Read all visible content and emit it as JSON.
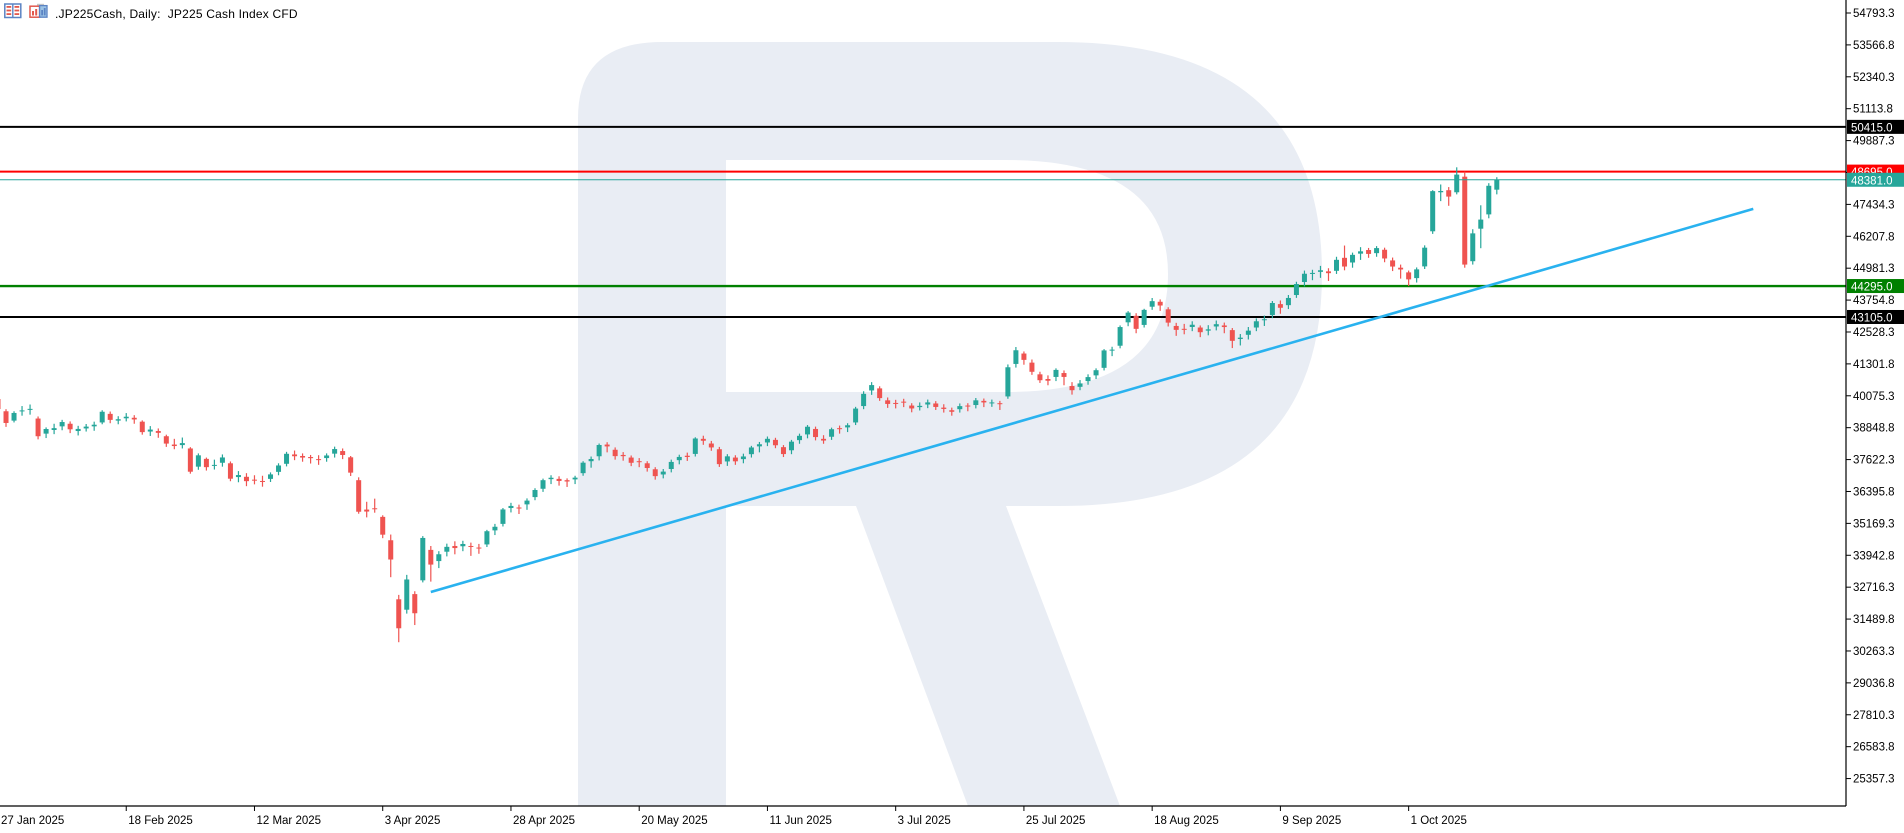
{
  "header": {
    "title": ".JP225Cash, Daily:  JP225 Cash Index CFD",
    "icons": [
      "market-watch-icon",
      "chart-windows-icon"
    ]
  },
  "chart_data": {
    "type": "candlestick",
    "symbol": ".JP225Cash",
    "timeframe": "Daily",
    "description": "JP225 Cash Index CFD",
    "colors": {
      "up": "#26a69a",
      "down": "#ef5350",
      "trendline": "#29b2ef",
      "current_price": "#26a69a",
      "axis_text": "#000000",
      "watermark": "#e9edf4"
    },
    "y_axis": {
      "side": "right",
      "ticks": [
        54793.3,
        53566.8,
        52340.3,
        51113.8,
        49887.3,
        48660.8,
        47434.3,
        46207.8,
        44981.3,
        43754.8,
        42528.3,
        41301.8,
        40075.3,
        38848.8,
        37622.3,
        36395.8,
        35169.3,
        33942.8,
        32716.3,
        31489.8,
        30263.3,
        29036.8,
        27810.3,
        26583.8,
        25357.3
      ]
    },
    "x_axis": {
      "labels": [
        {
          "label": "27 Jan 2025",
          "bar": 0
        },
        {
          "label": "18 Feb 2025",
          "bar": 16
        },
        {
          "label": "12 Mar 2025",
          "bar": 32
        },
        {
          "label": "3 Apr 2025",
          "bar": 48
        },
        {
          "label": "28 Apr 2025",
          "bar": 64
        },
        {
          "label": "20 May 2025",
          "bar": 80
        },
        {
          "label": "11 Jun 2025",
          "bar": 96
        },
        {
          "label": "3 Jul 2025",
          "bar": 112
        },
        {
          "label": "25 Jul 2025",
          "bar": 128
        },
        {
          "label": "18 Aug 2025",
          "bar": 144
        },
        {
          "label": "9 Sep 2025",
          "bar": 160
        },
        {
          "label": "1 Oct 2025",
          "bar": 176
        }
      ]
    },
    "levels": [
      {
        "price": 50415.0,
        "label": "50415.0",
        "color": "#000000",
        "width": 2,
        "role": "resistance-level"
      },
      {
        "price": 48695.0,
        "label": "48695.0",
        "color": "#ff0000",
        "width": 2,
        "role": "red-resistance-line"
      },
      {
        "price": 48381.0,
        "label": "48381.0",
        "color": "#26a69a",
        "width": 1,
        "role": "current-price-line"
      },
      {
        "price": 44295.0,
        "label": "44295.0",
        "color": "#008000",
        "width": 2.4,
        "role": "green-support-line"
      },
      {
        "price": 43105.0,
        "label": "43105.0",
        "color": "#000000",
        "width": 2,
        "role": "support-level"
      }
    ],
    "trendline": {
      "from": {
        "bar": 54,
        "price": 32530
      },
      "to": {
        "bar": 219,
        "price": 47260
      }
    },
    "watermark_letter": "R",
    "candles": [
      [
        39950,
        40020,
        39380,
        39565
      ],
      [
        39480,
        39560,
        38880,
        39030
      ],
      [
        39120,
        39480,
        39050,
        39415
      ],
      [
        39480,
        39680,
        39310,
        39513
      ],
      [
        39560,
        39740,
        39350,
        39572
      ],
      [
        39200,
        39280,
        38400,
        38520
      ],
      [
        38620,
        38860,
        38450,
        38798
      ],
      [
        38760,
        39000,
        38600,
        38831
      ],
      [
        38900,
        39150,
        38750,
        39066
      ],
      [
        39000,
        39090,
        38640,
        38787
      ],
      [
        38720,
        38920,
        38550,
        38801
      ],
      [
        38820,
        38990,
        38700,
        38890
      ],
      [
        38900,
        39080,
        38730,
        38963
      ],
      [
        39050,
        39520,
        38980,
        39461
      ],
      [
        39380,
        39470,
        39020,
        39149
      ],
      [
        39120,
        39290,
        38980,
        39174
      ],
      [
        39210,
        39410,
        39090,
        39270
      ],
      [
        39230,
        39330,
        39000,
        39165
      ],
      [
        39080,
        39130,
        38580,
        38678
      ],
      [
        38700,
        38910,
        38530,
        38776
      ],
      [
        38720,
        38820,
        38460,
        38650
      ],
      [
        38520,
        38580,
        38110,
        38237
      ],
      [
        38200,
        38420,
        38020,
        38143
      ],
      [
        38180,
        38470,
        38050,
        38256
      ],
      [
        38050,
        38100,
        37080,
        37156
      ],
      [
        37350,
        37860,
        37230,
        37786
      ],
      [
        37650,
        37700,
        37200,
        37331
      ],
      [
        37380,
        37620,
        37240,
        37418
      ],
      [
        37500,
        37820,
        37350,
        37704
      ],
      [
        37480,
        37550,
        36790,
        36887
      ],
      [
        36950,
        37180,
        36750,
        37028
      ],
      [
        36960,
        37100,
        36600,
        36793
      ],
      [
        36850,
        37020,
        36670,
        36819
      ],
      [
        36800,
        37000,
        36580,
        36790
      ],
      [
        36880,
        37130,
        36760,
        37053
      ],
      [
        37150,
        37480,
        37020,
        37396
      ],
      [
        37460,
        37920,
        37360,
        37845
      ],
      [
        37820,
        37970,
        37600,
        37751
      ],
      [
        37760,
        37860,
        37540,
        37700
      ],
      [
        37720,
        37800,
        37470,
        37677
      ],
      [
        37640,
        37790,
        37420,
        37608
      ],
      [
        37680,
        37860,
        37540,
        37780
      ],
      [
        37850,
        38120,
        37700,
        38027
      ],
      [
        37950,
        38050,
        37640,
        37799
      ],
      [
        37710,
        37760,
        36990,
        37120
      ],
      [
        36830,
        36940,
        35540,
        35617
      ],
      [
        35700,
        36000,
        35400,
        35624
      ],
      [
        35750,
        36120,
        35580,
        35725
      ],
      [
        35420,
        35480,
        34600,
        34735
      ],
      [
        34520,
        34740,
        33100,
        33780
      ],
      [
        32250,
        32420,
        30600,
        31136
      ],
      [
        31850,
        33190,
        31700,
        33012
      ],
      [
        32450,
        32560,
        31260,
        31714
      ],
      [
        32980,
        34680,
        32900,
        34609
      ],
      [
        34150,
        34300,
        32930,
        33585
      ],
      [
        33720,
        34100,
        33450,
        33982
      ],
      [
        34080,
        34390,
        33900,
        34267
      ],
      [
        34300,
        34480,
        33980,
        34220
      ],
      [
        34290,
        34500,
        34100,
        34377
      ],
      [
        34300,
        34430,
        33920,
        34279
      ],
      [
        34240,
        34380,
        34000,
        34220
      ],
      [
        34360,
        34920,
        34260,
        34868
      ],
      [
        34900,
        35150,
        34720,
        35039
      ],
      [
        35150,
        35760,
        35050,
        35705
      ],
      [
        35760,
        35960,
        35590,
        35840
      ],
      [
        35780,
        35890,
        35530,
        35740
      ],
      [
        35900,
        36130,
        35690,
        36045
      ],
      [
        36180,
        36520,
        36060,
        36452
      ],
      [
        36500,
        36890,
        36380,
        36830
      ],
      [
        36870,
        37020,
        36680,
        36924
      ],
      [
        36880,
        36980,
        36620,
        36800
      ],
      [
        36830,
        36900,
        36570,
        36779
      ],
      [
        36860,
        37000,
        36680,
        36928
      ],
      [
        37100,
        37560,
        37000,
        37503
      ],
      [
        37560,
        37740,
        37310,
        37644
      ],
      [
        37750,
        38240,
        37590,
        38183
      ],
      [
        38200,
        38290,
        37900,
        38128
      ],
      [
        38000,
        38090,
        37620,
        37755
      ],
      [
        37800,
        37910,
        37580,
        37754
      ],
      [
        37700,
        37780,
        37370,
        37499
      ],
      [
        37560,
        37680,
        37330,
        37529
      ],
      [
        37480,
        37560,
        37160,
        37298
      ],
      [
        37250,
        37330,
        36850,
        36986
      ],
      [
        37050,
        37260,
        36900,
        37160
      ],
      [
        37260,
        37620,
        37130,
        37532
      ],
      [
        37600,
        37810,
        37440,
        37724
      ],
      [
        37770,
        37890,
        37570,
        37722
      ],
      [
        37840,
        38480,
        37740,
        38433
      ],
      [
        38420,
        38540,
        38190,
        38346
      ],
      [
        38240,
        38340,
        37960,
        38089
      ],
      [
        38020,
        38110,
        37340,
        37447
      ],
      [
        37550,
        37830,
        37380,
        37747
      ],
      [
        37700,
        37790,
        37420,
        37555
      ],
      [
        37640,
        37850,
        37480,
        37742
      ],
      [
        37830,
        38150,
        37700,
        38088
      ],
      [
        38130,
        38300,
        37900,
        38212
      ],
      [
        38280,
        38510,
        38140,
        38421
      ],
      [
        38380,
        38460,
        38060,
        38173
      ],
      [
        38100,
        38180,
        37720,
        37834
      ],
      [
        37980,
        38380,
        37830,
        38311
      ],
      [
        38370,
        38620,
        38230,
        38536
      ],
      [
        38590,
        38950,
        38440,
        38885
      ],
      [
        38800,
        38890,
        38360,
        38488
      ],
      [
        38420,
        38560,
        38230,
        38354
      ],
      [
        38500,
        38850,
        38380,
        38790
      ],
      [
        38830,
        38930,
        38620,
        38791
      ],
      [
        38860,
        39020,
        38680,
        38942
      ],
      [
        39050,
        39650,
        38950,
        39584
      ],
      [
        39680,
        40250,
        39560,
        40150
      ],
      [
        40280,
        40600,
        40110,
        40487
      ],
      [
        40360,
        40440,
        39880,
        39986
      ],
      [
        39900,
        40010,
        39610,
        39762
      ],
      [
        39800,
        39920,
        39590,
        39786
      ],
      [
        39850,
        39960,
        39640,
        39811
      ],
      [
        39700,
        39790,
        39440,
        39588
      ],
      [
        39640,
        39820,
        39510,
        39688
      ],
      [
        39740,
        39930,
        39600,
        39821
      ],
      [
        39780,
        39870,
        39530,
        39646
      ],
      [
        39620,
        39750,
        39430,
        39570
      ],
      [
        39520,
        39620,
        39310,
        39460
      ],
      [
        39560,
        39780,
        39430,
        39678
      ],
      [
        39700,
        39790,
        39480,
        39663
      ],
      [
        39720,
        39990,
        39590,
        39901
      ],
      [
        39880,
        39970,
        39640,
        39819
      ],
      [
        39800,
        39930,
        39650,
        39820
      ],
      [
        39790,
        39880,
        39530,
        39775
      ],
      [
        40050,
        41280,
        39960,
        41172
      ],
      [
        41300,
        41950,
        41160,
        41826
      ],
      [
        41700,
        41780,
        41270,
        41456
      ],
      [
        41350,
        41470,
        40880,
        40998
      ],
      [
        40900,
        41000,
        40570,
        40674
      ],
      [
        40720,
        40860,
        40480,
        40654
      ],
      [
        40800,
        41130,
        40640,
        41070
      ],
      [
        40950,
        41050,
        40480,
        40800
      ],
      [
        40450,
        40600,
        40120,
        40290
      ],
      [
        40420,
        40680,
        40290,
        40550
      ],
      [
        40640,
        40900,
        40500,
        40794
      ],
      [
        40860,
        41130,
        40720,
        41059
      ],
      [
        41150,
        41870,
        41050,
        41820
      ],
      [
        41830,
        41960,
        41600,
        41850
      ],
      [
        42000,
        42780,
        41900,
        42718
      ],
      [
        42900,
        43330,
        42750,
        43274
      ],
      [
        43150,
        43250,
        42480,
        42649
      ],
      [
        42800,
        43420,
        42700,
        43378
      ],
      [
        43500,
        43835,
        43380,
        43714
      ],
      [
        43690,
        43780,
        43340,
        43546
      ],
      [
        43400,
        43480,
        42740,
        42888
      ],
      [
        42760,
        42880,
        42380,
        42610
      ],
      [
        42650,
        42840,
        42440,
        42633
      ],
      [
        42720,
        42940,
        42560,
        42807
      ],
      [
        42700,
        42780,
        42330,
        42520
      ],
      [
        42580,
        42790,
        42400,
        42630
      ],
      [
        42740,
        42970,
        42590,
        42828
      ],
      [
        42780,
        42890,
        42480,
        42718
      ],
      [
        42600,
        42680,
        41910,
        42188
      ],
      [
        42260,
        42450,
        42010,
        42310
      ],
      [
        42420,
        42720,
        42240,
        42580
      ],
      [
        42700,
        43050,
        42560,
        42940
      ],
      [
        42980,
        43160,
        42760,
        43018
      ],
      [
        43180,
        43720,
        43060,
        43643
      ],
      [
        43600,
        43740,
        43230,
        43459
      ],
      [
        43560,
        43950,
        43410,
        43837
      ],
      [
        43950,
        44460,
        43840,
        44372
      ],
      [
        44450,
        44890,
        44280,
        44768
      ],
      [
        44760,
        44920,
        44520,
        44800
      ],
      [
        44840,
        45070,
        44610,
        44902
      ],
      [
        44860,
        44980,
        44490,
        44790
      ],
      [
        44880,
        45420,
        44760,
        45303
      ],
      [
        45380,
        45852,
        44900,
        45045
      ],
      [
        45200,
        45580,
        45000,
        45494
      ],
      [
        45540,
        45790,
        45300,
        45630
      ],
      [
        45680,
        45760,
        45380,
        45530
      ],
      [
        45560,
        45830,
        45420,
        45754
      ],
      [
        45690,
        45770,
        45210,
        45355
      ],
      [
        45280,
        45390,
        44870,
        45044
      ],
      [
        45000,
        45120,
        44580,
        44932
      ],
      [
        44820,
        44890,
        44295,
        44551
      ],
      [
        44600,
        45010,
        44430,
        44936
      ],
      [
        45050,
        45860,
        44950,
        45770
      ],
      [
        46400,
        47980,
        46300,
        47944
      ],
      [
        47900,
        48200,
        47560,
        47950
      ],
      [
        47980,
        48100,
        47380,
        47734
      ],
      [
        47900,
        48860,
        47820,
        48580
      ],
      [
        48500,
        48695,
        45000,
        45120
      ],
      [
        45250,
        46480,
        45120,
        46320
      ],
      [
        46500,
        47400,
        45750,
        46850
      ],
      [
        47050,
        48250,
        46900,
        48150
      ],
      [
        48000,
        48480,
        47820,
        48381
      ]
    ]
  }
}
